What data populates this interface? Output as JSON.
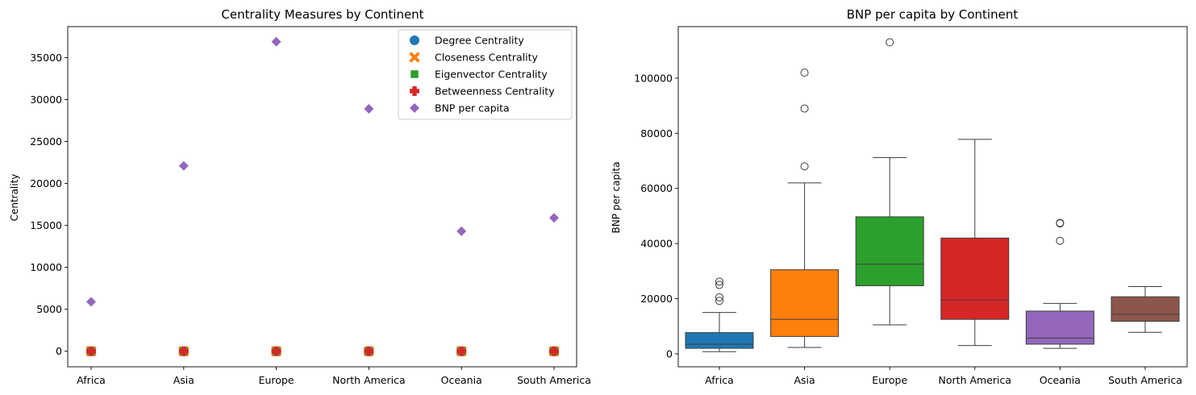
{
  "chart_data": [
    {
      "type": "scatter",
      "title": "Centrality Measures by Continent",
      "xlabel": "",
      "ylabel": "Centrality",
      "categories": [
        "Africa",
        "Asia",
        "Europe",
        "North America",
        "Oceania",
        "South America"
      ],
      "ylim": [
        -1850,
        38700
      ],
      "yticks": [
        0,
        5000,
        10000,
        15000,
        20000,
        25000,
        30000,
        35000
      ],
      "grid": false,
      "legend_position": "top-right",
      "series": [
        {
          "name": "Degree Centrality",
          "marker": "circle",
          "color": "#1f77b4",
          "values": [
            0,
            0,
            0,
            0,
            0,
            0
          ]
        },
        {
          "name": "Closeness Centrality",
          "marker": "x",
          "color": "#ff7f0e",
          "values": [
            0,
            0,
            0,
            0,
            0,
            0
          ]
        },
        {
          "name": "Eigenvector Centrality",
          "marker": "square",
          "color": "#2ca02c",
          "values": [
            0,
            0,
            0,
            0,
            0,
            0
          ]
        },
        {
          "name": "Betweenness Centrality",
          "marker": "plus",
          "color": "#d62728",
          "values": [
            0,
            0,
            0,
            0,
            0,
            0
          ]
        },
        {
          "name": "BNP per capita",
          "marker": "diamond",
          "color": "#9467bd",
          "values": [
            5900,
            22100,
            36900,
            28900,
            14300,
            15900
          ]
        }
      ]
    },
    {
      "type": "box",
      "title": "BNP per capita by Continent",
      "xlabel": "",
      "ylabel": "BNP per capita",
      "categories": [
        "Africa",
        "Asia",
        "Europe",
        "North America",
        "Oceania",
        "South America"
      ],
      "ylim": [
        -4700,
        118700
      ],
      "yticks": [
        0,
        20000,
        40000,
        60000,
        80000,
        100000
      ],
      "grid": false,
      "boxes": [
        {
          "category": "Africa",
          "color": "#1f77b4",
          "whisker_low": 800,
          "q1": 2000,
          "median": 3500,
          "q3": 7700,
          "whisker_high": 15000,
          "outliers": [
            19200,
            20500,
            25000,
            26200
          ]
        },
        {
          "category": "Asia",
          "color": "#ff7f0e",
          "whisker_low": 2300,
          "q1": 6300,
          "median": 12500,
          "q3": 30500,
          "whisker_high": 62000,
          "outliers": [
            68000,
            89000,
            102000
          ]
        },
        {
          "category": "Europe",
          "color": "#2ca02c",
          "whisker_low": 10500,
          "q1": 24700,
          "median": 32500,
          "q3": 49700,
          "whisker_high": 71200,
          "outliers": [
            113000
          ]
        },
        {
          "category": "North America",
          "color": "#d62728",
          "whisker_low": 3000,
          "q1": 12500,
          "median": 19500,
          "q3": 42000,
          "whisker_high": 77800,
          "outliers": []
        },
        {
          "category": "Oceania",
          "color": "#9467bd",
          "whisker_low": 2000,
          "q1": 3500,
          "median": 5700,
          "q3": 15500,
          "whisker_high": 18300,
          "outliers": [
            41000,
            47500,
            47300
          ]
        },
        {
          "category": "South America",
          "color": "#8c564b",
          "whisker_low": 7800,
          "q1": 11800,
          "median": 14300,
          "q3": 20700,
          "whisker_high": 24400,
          "outliers": []
        }
      ]
    }
  ]
}
